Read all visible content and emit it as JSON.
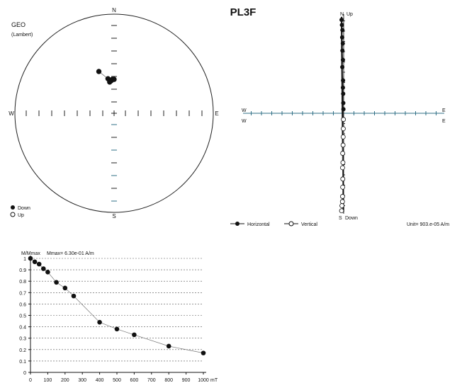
{
  "title": "PL3F",
  "stereonet": {
    "projection_label": "GEO",
    "projection_sub": "(Lambert)",
    "north": "N",
    "south": "S",
    "east": "E",
    "west": "W",
    "legend_down": "Down",
    "legend_up": "Up",
    "points": [
      {
        "dec": 355,
        "inc": 63,
        "filled": true
      },
      {
        "dec": 357,
        "inc": 62,
        "filled": true
      },
      {
        "dec": 0,
        "inc": 62,
        "filled": true
      },
      {
        "dec": 352,
        "inc": 64,
        "filled": true
      },
      {
        "dec": 350,
        "inc": 61,
        "filled": true
      },
      {
        "dec": 340,
        "inc": 53,
        "filled": true
      }
    ]
  },
  "zijderveld": {
    "north_label": "N",
    "up_label": "Up",
    "south_label": "S",
    "down_label": "Down",
    "east_label": "E",
    "west_label": "W",
    "legend_horizontal": "Horizontal",
    "legend_vertical": "Vertical",
    "unit_text": "Unit= 903.e-05 A/m",
    "horizontal_points": [
      [
        -0.17,
        9.1
      ],
      [
        -0.14,
        8.6
      ],
      [
        -0.1,
        8.1
      ],
      [
        -0.12,
        7.4
      ],
      [
        -0.07,
        6.8
      ],
      [
        -0.1,
        6.1
      ],
      [
        -0.06,
        5.2
      ],
      [
        -0.11,
        4.5
      ],
      [
        -0.05,
        3.2
      ],
      [
        -0.06,
        2.5
      ],
      [
        -0.04,
        1.9
      ],
      [
        -0.03,
        1.0
      ],
      [
        -0.02,
        0.4
      ]
    ],
    "vertical_points": [
      [
        -0.17,
        -9.5
      ],
      [
        -0.14,
        -9.0
      ],
      [
        -0.1,
        -8.6
      ],
      [
        -0.09,
        -8.1
      ],
      [
        -0.08,
        -7.2
      ],
      [
        -0.07,
        -6.4
      ],
      [
        -0.09,
        -5.3
      ],
      [
        -0.06,
        -4.8
      ],
      [
        -0.08,
        -3.9
      ],
      [
        -0.05,
        -3.1
      ],
      [
        -0.04,
        -2.3
      ],
      [
        -0.03,
        -1.5
      ],
      [
        -0.02,
        -0.6
      ]
    ],
    "fit_line": [
      [
        -0.17,
        9.4
      ],
      [
        -0.02,
        -9.6
      ]
    ]
  },
  "chart_data": {
    "type": "line",
    "title": "M/Mmax",
    "annotation": "Mmax= 6.30e-01  A/m",
    "xlabel": "mT",
    "ylabel": "M/Mmax",
    "xlim": [
      0,
      1000
    ],
    "ylim": [
      0,
      1
    ],
    "x_ticks": [
      "0",
      "100",
      "200",
      "300",
      "400",
      "500",
      "600",
      "700",
      "800",
      "900",
      "1000"
    ],
    "y_ticks": [
      "0",
      "0.1",
      "0.2",
      "0.3",
      "0.4",
      "0.5",
      "0.6",
      "0.7",
      "0.8",
      "0.9",
      "1"
    ],
    "grid": true,
    "series": [
      {
        "x": [
          0,
          25,
          50,
          75,
          100,
          150,
          200,
          250,
          400,
          500,
          600,
          800,
          1000
        ],
        "values": [
          1.0,
          0.97,
          0.95,
          0.91,
          0.88,
          0.79,
          0.74,
          0.67,
          0.44,
          0.38,
          0.33,
          0.23,
          0.17
        ]
      }
    ]
  }
}
